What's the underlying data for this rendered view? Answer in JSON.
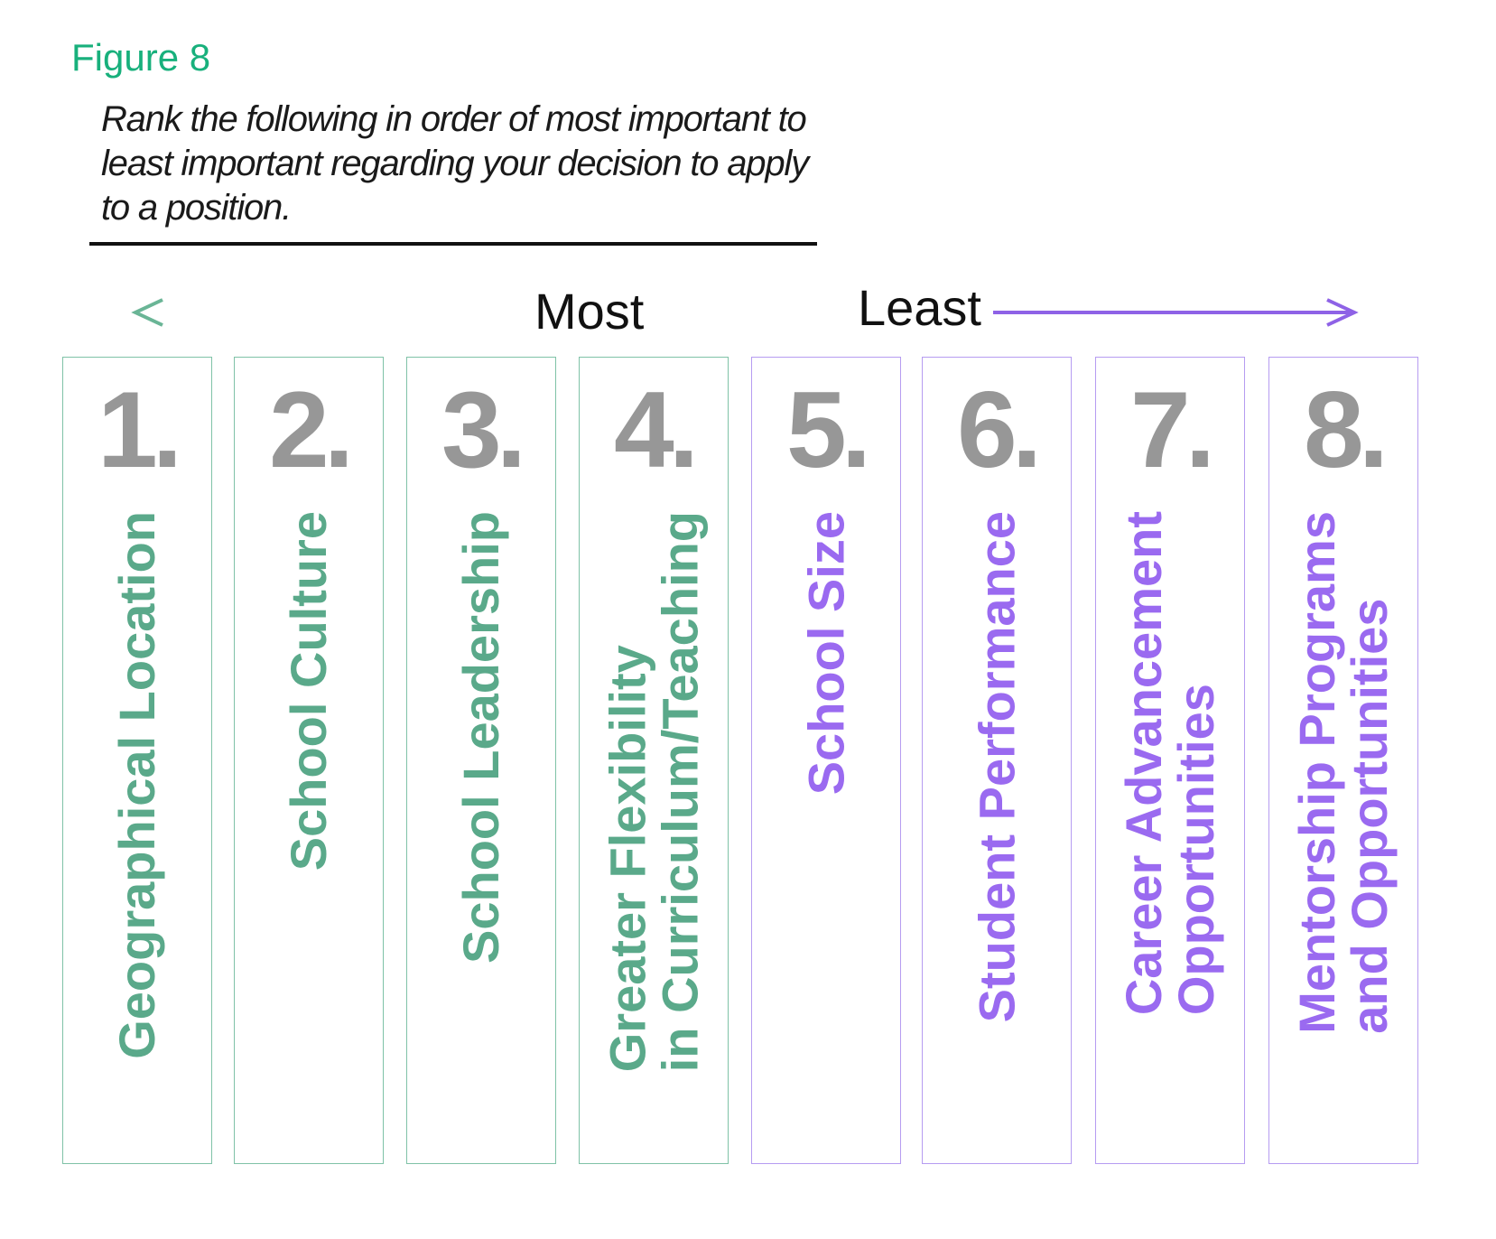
{
  "figure_label": "Figure 8",
  "question": "Rank the following in order of most important to least important regarding your decision to apply to a position.",
  "axis": {
    "most": "Most",
    "least": "Least"
  },
  "colors": {
    "most_green": "#5aa98a",
    "least_purple": "#9a6af0",
    "rank_gray": "#979797",
    "figure_label": "#18b07c"
  },
  "items": [
    {
      "rank": "1.",
      "lines": [
        "Geographical Location"
      ],
      "group": "green"
    },
    {
      "rank": "2.",
      "lines": [
        "School Culture"
      ],
      "group": "green"
    },
    {
      "rank": "3.",
      "lines": [
        "School Leadership"
      ],
      "group": "green"
    },
    {
      "rank": "4.",
      "lines": [
        "Greater Flexibility",
        "in Curriculum/Teaching"
      ],
      "group": "green"
    },
    {
      "rank": "5.",
      "lines": [
        "School Size"
      ],
      "group": "purple"
    },
    {
      "rank": "6.",
      "lines": [
        "Student Performance"
      ],
      "group": "purple"
    },
    {
      "rank": "7.",
      "lines": [
        "Career Advancement",
        "Opportunities"
      ],
      "group": "purple"
    },
    {
      "rank": "8.",
      "lines": [
        "Mentorship Programs",
        "and Opportunities"
      ],
      "group": "purple"
    }
  ]
}
